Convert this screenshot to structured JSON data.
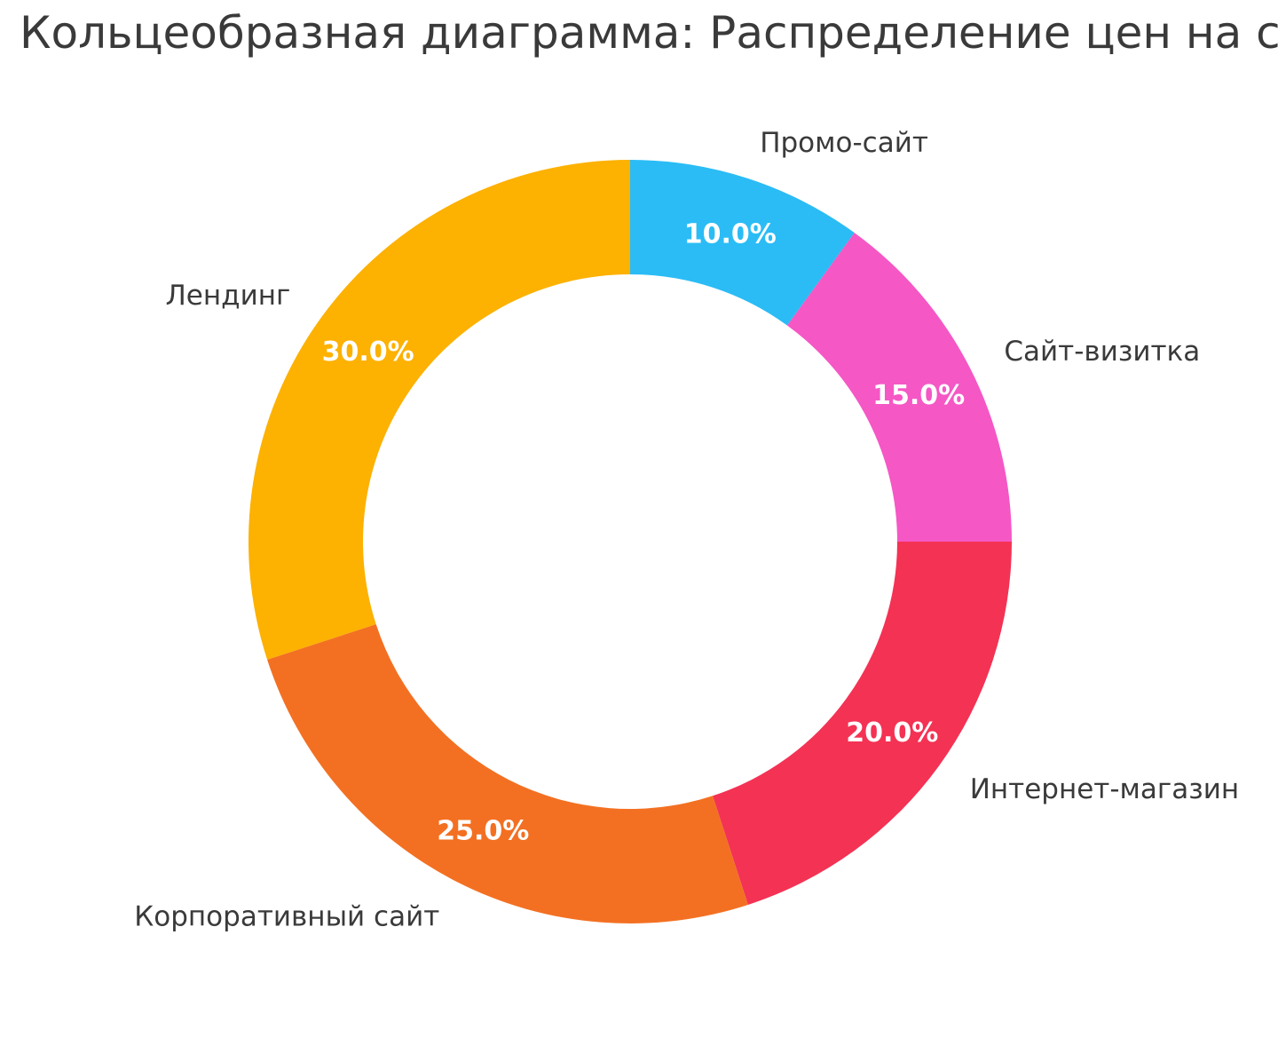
{
  "chart_data": {
    "type": "pie",
    "subtype": "donut",
    "title": "Кольцеобразная диаграмма: Распределение цен на сайты",
    "categories": [
      "Промо-сайт",
      "Сайт-визитка",
      "Интернет-магазин",
      "Корпоративный сайт",
      "Лендинг"
    ],
    "values": [
      10.0,
      15.0,
      20.0,
      25.0,
      30.0
    ],
    "percent_labels": [
      "10.0%",
      "15.0%",
      "20.0%",
      "25.0%",
      "30.0%"
    ],
    "colors": [
      "#2BBCF5",
      "#F557C5",
      "#F43254",
      "#F37022",
      "#FDB101"
    ],
    "start_angle_deg": 90,
    "direction": "clockwise",
    "donut_hole_ratio": 0.7,
    "legend": "none",
    "title_color": "#3A3A3A",
    "category_label_color": "#3A3A3A",
    "percent_label_color": "#FFFFFF",
    "background_color": "#FFFFFF"
  }
}
